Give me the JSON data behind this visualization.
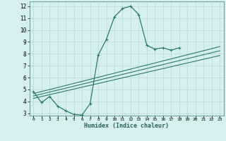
{
  "xlabel": "Humidex (Indice chaleur)",
  "background_color": "#d6f0ef",
  "grid_color": "#b8d8d8",
  "line_color": "#2a7a6a",
  "xlim": [
    -0.5,
    23.5
  ],
  "ylim": [
    2.8,
    12.4
  ],
  "xticks": [
    0,
    1,
    2,
    3,
    4,
    5,
    6,
    7,
    8,
    9,
    10,
    11,
    12,
    13,
    14,
    15,
    16,
    17,
    18,
    19,
    20,
    21,
    22,
    23
  ],
  "yticks": [
    3,
    4,
    5,
    6,
    7,
    8,
    9,
    10,
    11,
    12
  ],
  "series_main": {
    "x": [
      0,
      1,
      2,
      3,
      4,
      5,
      6,
      7,
      8,
      9,
      10,
      11,
      12,
      13,
      14,
      15,
      16,
      17,
      18
    ],
    "y": [
      4.8,
      3.9,
      4.4,
      3.6,
      3.2,
      2.9,
      2.85,
      3.8,
      7.9,
      9.2,
      11.1,
      11.8,
      12.0,
      11.3,
      8.7,
      8.4,
      8.5,
      8.3,
      8.5
    ]
  },
  "trend_lines": [
    {
      "x": [
        0,
        23
      ],
      "y": [
        4.65,
        8.6
      ]
    },
    {
      "x": [
        0,
        23
      ],
      "y": [
        4.45,
        8.25
      ]
    },
    {
      "x": [
        0,
        23
      ],
      "y": [
        4.25,
        7.85
      ]
    }
  ]
}
